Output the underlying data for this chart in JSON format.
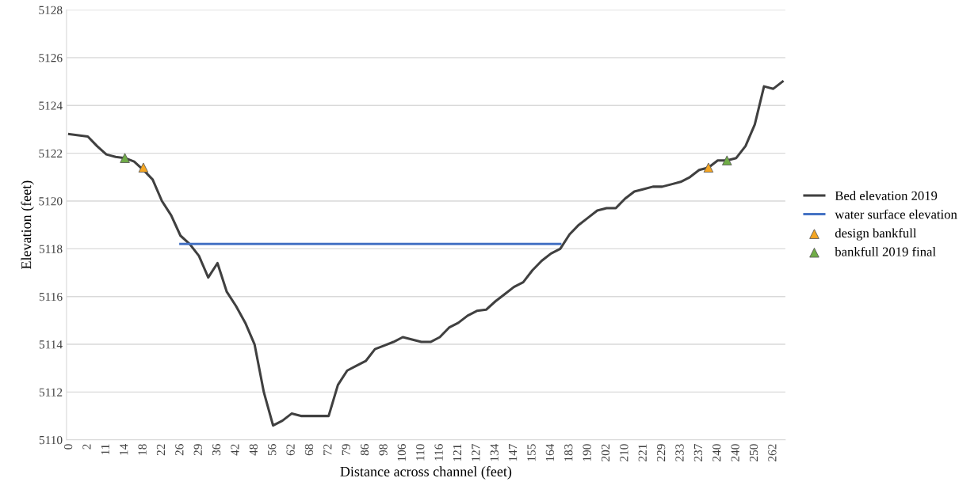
{
  "chart_data": {
    "type": "line",
    "xlabel": "Distance across channel (feet)",
    "ylabel": "Elevation (feet)",
    "categories": [
      "0",
      null,
      "2",
      null,
      "11",
      null,
      "14",
      null,
      "18",
      null,
      "22",
      null,
      "26",
      null,
      "29",
      null,
      "36",
      null,
      "42",
      null,
      "48",
      null,
      "56",
      null,
      "62",
      null,
      "68",
      null,
      "72",
      null,
      "79",
      null,
      "86",
      null,
      "98",
      null,
      "106",
      null,
      "110",
      null,
      "116",
      null,
      "121",
      null,
      "127",
      null,
      "134",
      null,
      "147",
      null,
      "155",
      null,
      "164",
      null,
      "183",
      null,
      "190",
      null,
      "202",
      null,
      "210",
      null,
      "221",
      null,
      "229",
      null,
      "233",
      null,
      "237",
      null,
      "240",
      null,
      "240",
      null,
      "250",
      null,
      "262",
      null
    ],
    "series": [
      {
        "name": "Bed elevation 2019",
        "color": "#404040",
        "marker": "none",
        "values": [
          5122.8,
          5122.75,
          5122.7,
          5122.3,
          5121.95,
          5121.85,
          5121.8,
          5121.65,
          5121.3,
          5120.9,
          5120.0,
          5119.4,
          5118.55,
          5118.2,
          5117.7,
          5116.8,
          5117.4,
          5116.2,
          5115.6,
          5114.9,
          5114.0,
          5112.0,
          5110.6,
          5110.8,
          5111.1,
          5111.0,
          5111.0,
          5111.0,
          5111.0,
          5112.3,
          5112.9,
          5113.1,
          5113.3,
          5113.8,
          5113.95,
          5114.1,
          5114.3,
          5114.2,
          5114.1,
          5114.1,
          5114.3,
          5114.7,
          5114.9,
          5115.2,
          5115.4,
          5115.45,
          5115.8,
          5116.1,
          5116.4,
          5116.6,
          5117.1,
          5117.5,
          5117.8,
          5118.0,
          5118.6,
          5119.0,
          5119.3,
          5119.6,
          5119.7,
          5119.7,
          5120.1,
          5120.4,
          5120.5,
          5120.6,
          5120.6,
          5120.7,
          5120.8,
          5121.0,
          5121.3,
          5121.4,
          5121.7,
          5121.7,
          5121.8,
          5122.3,
          5123.2,
          5124.8,
          5124.7,
          5125.0
        ]
      },
      {
        "name": "water surface elevation",
        "color": "#4472c4",
        "marker": "none",
        "values": [
          null,
          null,
          null,
          null,
          null,
          null,
          null,
          null,
          null,
          null,
          null,
          null,
          5118.2,
          5118.2,
          5118.2,
          5118.2,
          5118.2,
          5118.2,
          5118.2,
          5118.2,
          5118.2,
          5118.2,
          5118.2,
          5118.2,
          5118.2,
          5118.2,
          5118.2,
          5118.2,
          5118.2,
          5118.2,
          5118.2,
          5118.2,
          5118.2,
          5118.2,
          5118.2,
          5118.2,
          5118.2,
          5118.2,
          5118.2,
          5118.2,
          5118.2,
          5118.2,
          5118.2,
          5118.2,
          5118.2,
          5118.2,
          5118.2,
          5118.2,
          5118.2,
          5118.2,
          5118.2,
          5118.2,
          5118.2,
          5118.2,
          null,
          null,
          null,
          null,
          null,
          null,
          null,
          null,
          null,
          null,
          null,
          null,
          null,
          null,
          null,
          null,
          null,
          null,
          null,
          null,
          null,
          null,
          null,
          null
        ]
      },
      {
        "name": "design bankfull",
        "color": "#f5a623",
        "type": "scatter",
        "marker": "triangle",
        "values": [
          null,
          null,
          null,
          null,
          null,
          null,
          null,
          null,
          5121.4,
          null,
          null,
          null,
          null,
          null,
          null,
          null,
          null,
          null,
          null,
          null,
          null,
          null,
          null,
          null,
          null,
          null,
          null,
          null,
          null,
          null,
          null,
          null,
          null,
          null,
          null,
          null,
          null,
          null,
          null,
          null,
          null,
          null,
          null,
          null,
          null,
          null,
          null,
          null,
          null,
          null,
          null,
          null,
          null,
          null,
          null,
          null,
          null,
          null,
          null,
          null,
          null,
          null,
          null,
          null,
          null,
          null,
          null,
          null,
          null,
          5121.4,
          null,
          null,
          null,
          null,
          null,
          null,
          null,
          null
        ]
      },
      {
        "name": "bankfull 2019 final",
        "color": "#70ad47",
        "type": "scatter",
        "marker": "triangle",
        "values": [
          null,
          null,
          null,
          null,
          null,
          null,
          5121.8,
          null,
          null,
          null,
          null,
          null,
          null,
          null,
          null,
          null,
          null,
          null,
          null,
          null,
          null,
          null,
          null,
          null,
          null,
          null,
          null,
          null,
          null,
          null,
          null,
          null,
          null,
          null,
          null,
          null,
          null,
          null,
          null,
          null,
          null,
          null,
          null,
          null,
          null,
          null,
          null,
          null,
          null,
          null,
          null,
          null,
          null,
          null,
          null,
          null,
          null,
          null,
          null,
          null,
          null,
          null,
          null,
          null,
          null,
          null,
          null,
          null,
          null,
          null,
          null,
          5121.7,
          null,
          null,
          null,
          null,
          null,
          null
        ]
      }
    ],
    "ylim": [
      5110,
      5128
    ],
    "yticks": [
      5110,
      5112,
      5114,
      5116,
      5118,
      5120,
      5122,
      5124,
      5126,
      5128
    ],
    "grid": "y",
    "legend": "right"
  }
}
